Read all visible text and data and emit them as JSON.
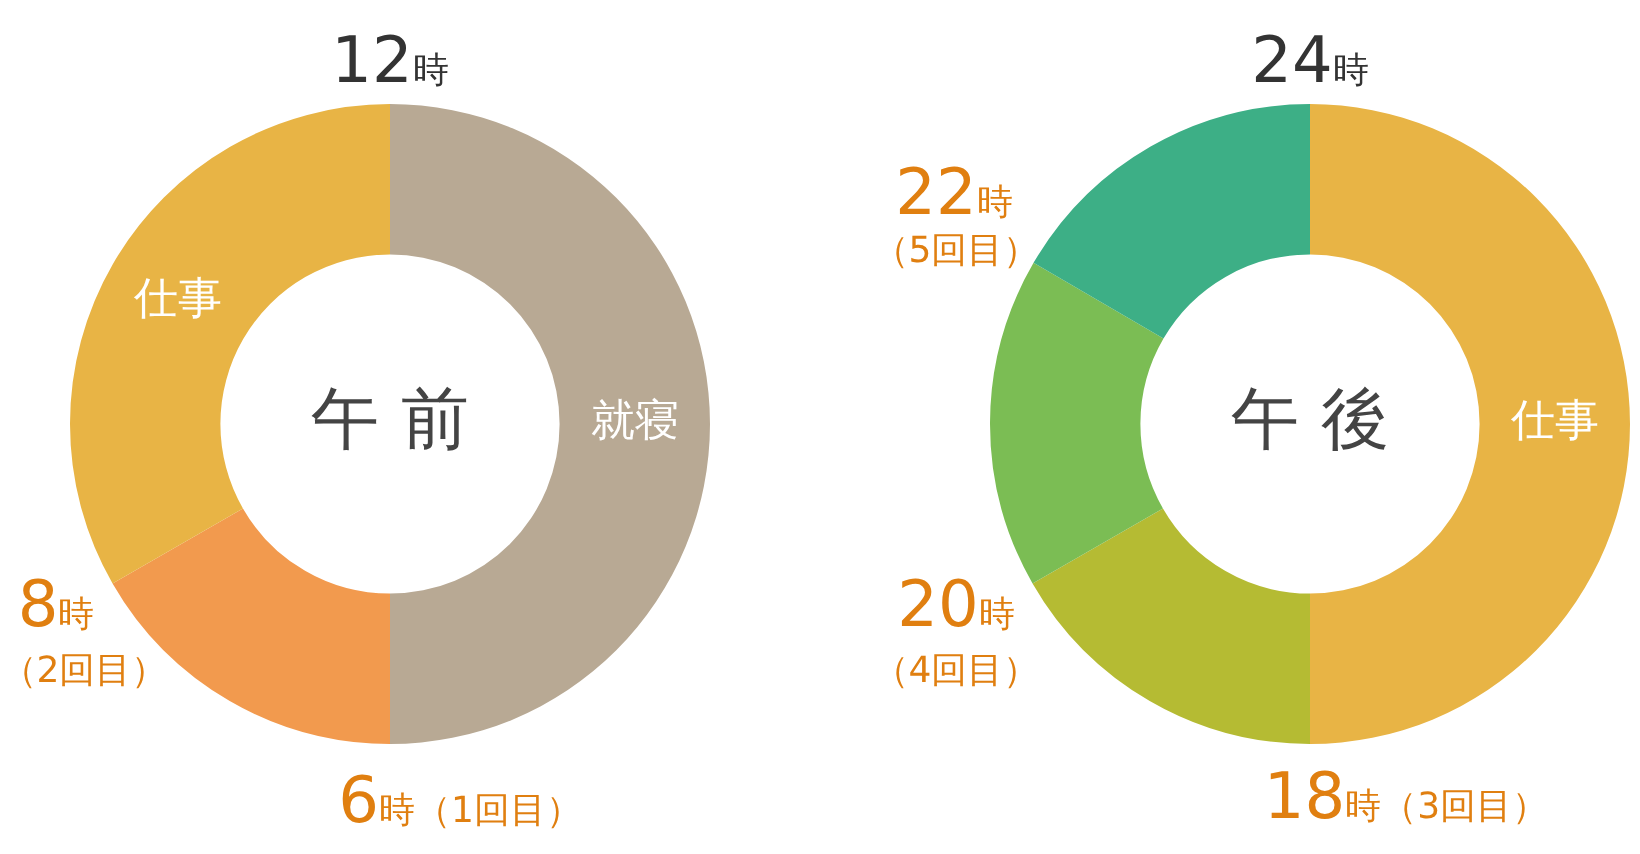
{
  "chart_data": [
    {
      "type": "donut",
      "title": "午前",
      "categories": [
        "就寝",
        null,
        "仕事"
      ],
      "values": [
        50,
        16.7,
        33.3
      ],
      "colors": [
        "#b8a994",
        "#f29a4e",
        "#e8b445"
      ],
      "legend": false,
      "annotations": [
        "12時",
        "8時",
        "（2回目）",
        "6時（1回目）"
      ]
    },
    {
      "type": "donut",
      "title": "午後",
      "categories": [
        "仕事",
        null,
        null,
        null
      ],
      "values": [
        50,
        16.7,
        16.7,
        16.6
      ],
      "colors": [
        "#e8b445",
        "#b5bb33",
        "#7bbd54",
        "#3daf86"
      ],
      "legend": false,
      "annotations": [
        "24時",
        "22時",
        "（5回目）",
        "20時",
        "（4回目）",
        "18時（3回目）"
      ]
    }
  ]
}
